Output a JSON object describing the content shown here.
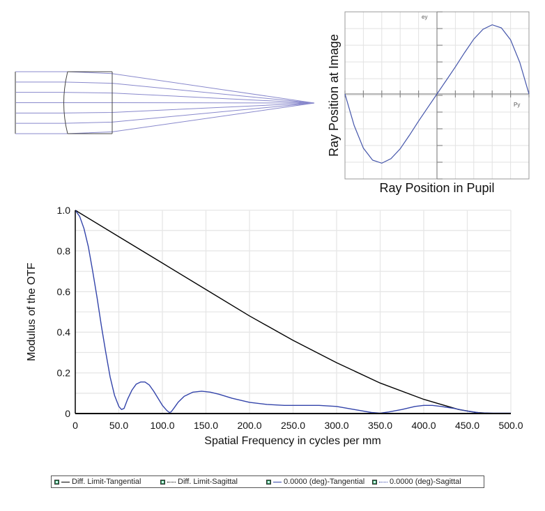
{
  "lens_diagram": {
    "ray_color": "#8888cc",
    "ray_count": 7
  },
  "ray_fan": {
    "ylabel": "Ray Position at Image",
    "xlabel": "Ray Position in Pupil",
    "y_axis_tag": "ey",
    "x_axis_tag": "Py",
    "curve_color": "#4455aa"
  },
  "legend": {
    "items": [
      {
        "label": "Diff. Limit-Tangential",
        "style": "solid",
        "color": "#000000"
      },
      {
        "label": "Diff. Limit-Sagittal",
        "style": "dotted",
        "color": "#000000"
      },
      {
        "label": "0.0000 (deg)-Tangential",
        "style": "solid",
        "color": "#3344aa"
      },
      {
        "label": "0.0000 (deg)-Sagittal",
        "style": "dotted",
        "color": "#3344aa"
      }
    ]
  },
  "chart_data": [
    {
      "type": "line",
      "title": "",
      "xlabel": "Spatial Frequency in cycles per mm",
      "ylabel": "Modulus of the OTF",
      "xlim": [
        0,
        500
      ],
      "ylim": [
        0,
        1.0
      ],
      "grid": true,
      "x_ticks": [
        0,
        50,
        100,
        150,
        200,
        250,
        300,
        350,
        400,
        450,
        500
      ],
      "x_tick_labels": [
        "0",
        "50.0",
        "100.0",
        "150.0",
        "200.0",
        "250.0",
        "300.0",
        "350.0",
        "400.0",
        "450.0",
        "500.0"
      ],
      "y_ticks": [
        0,
        0.2,
        0.4,
        0.6,
        0.8,
        1.0
      ],
      "y_tick_labels": [
        "0",
        "0.2",
        "0.4",
        "0.6",
        "0.8",
        "1.0"
      ],
      "legend_position": "bottom",
      "series": [
        {
          "name": "Diff. Limit-Tangential",
          "color": "#000000",
          "x": [
            0,
            50,
            100,
            150,
            200,
            250,
            300,
            350,
            400,
            420,
            440,
            460,
            480
          ],
          "y": [
            1.0,
            0.87,
            0.74,
            0.61,
            0.48,
            0.36,
            0.25,
            0.15,
            0.07,
            0.045,
            0.02,
            0.005,
            0.0
          ]
        },
        {
          "name": "0.0000 (deg)-Tangential",
          "color": "#3344aa",
          "x": [
            0,
            5,
            10,
            15,
            20,
            25,
            30,
            35,
            40,
            45,
            50,
            53,
            56,
            60,
            65,
            70,
            75,
            80,
            85,
            90,
            95,
            100,
            105,
            108,
            110,
            113,
            118,
            125,
            135,
            145,
            155,
            165,
            180,
            200,
            220,
            240,
            260,
            280,
            300,
            320,
            340,
            350,
            360,
            375,
            390,
            400,
            410,
            420,
            435,
            450,
            465,
            480,
            500
          ],
          "y": [
            1.0,
            0.97,
            0.91,
            0.82,
            0.7,
            0.57,
            0.43,
            0.3,
            0.18,
            0.09,
            0.035,
            0.02,
            0.025,
            0.07,
            0.115,
            0.145,
            0.155,
            0.155,
            0.14,
            0.11,
            0.075,
            0.04,
            0.015,
            0.005,
            0.008,
            0.025,
            0.055,
            0.085,
            0.105,
            0.11,
            0.105,
            0.095,
            0.075,
            0.055,
            0.045,
            0.04,
            0.04,
            0.04,
            0.035,
            0.02,
            0.005,
            0.002,
            0.008,
            0.02,
            0.035,
            0.04,
            0.04,
            0.035,
            0.025,
            0.012,
            0.003,
            0.002,
            0.002
          ]
        }
      ]
    },
    {
      "type": "line",
      "title": "",
      "xlabel": "Ray Position in Pupil",
      "ylabel": "Ray Position at Image",
      "xlim": [
        -1,
        1
      ],
      "ylim": [
        -1,
        1
      ],
      "grid": true,
      "series": [
        {
          "name": "ey vs Py",
          "color": "#4455aa",
          "x": [
            -1,
            -0.9,
            -0.8,
            -0.7,
            -0.6,
            -0.5,
            -0.4,
            -0.3,
            -0.2,
            -0.1,
            0,
            0.1,
            0.2,
            0.3,
            0.4,
            0.5,
            0.6,
            0.7,
            0.8,
            0.9,
            1
          ],
          "y": [
            0,
            -0.42,
            -0.72,
            -0.88,
            -0.92,
            -0.86,
            -0.73,
            -0.55,
            -0.36,
            -0.18,
            0,
            0.18,
            0.36,
            0.55,
            0.73,
            0.86,
            0.92,
            0.88,
            0.72,
            0.42,
            0
          ]
        }
      ]
    }
  ]
}
